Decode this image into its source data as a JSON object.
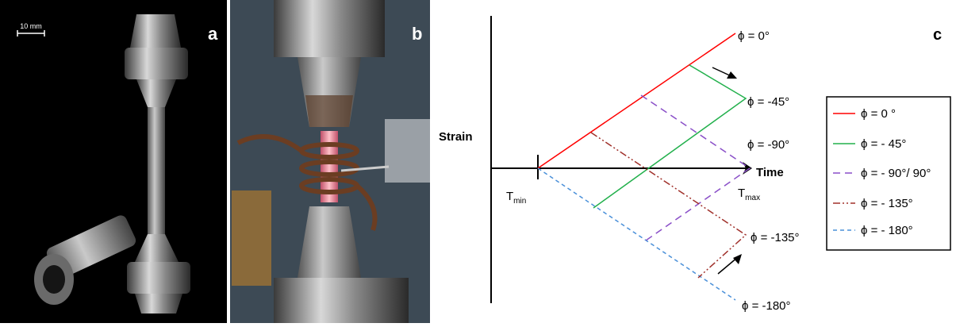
{
  "panels": {
    "a": {
      "label": "a",
      "scale_bar": "10 mm"
    },
    "b": {
      "label": "b"
    },
    "c": {
      "label": "c"
    }
  },
  "diagram": {
    "y_axis_label": "Strain",
    "x_axis_label": "Time",
    "t_min": {
      "main": "T",
      "sub": "min"
    },
    "t_max": {
      "main": "T",
      "sub": "max"
    },
    "phase_labels": [
      "ϕ = 0°",
      "ϕ = -45°",
      "ϕ = -90°",
      "ϕ = -135°",
      "ϕ = -180°"
    ]
  },
  "legend": [
    "ϕ = 0 °",
    "ϕ = - 45°",
    "ϕ = - 90°/ 90°",
    "ϕ = - 135°",
    "ϕ = - 180°"
  ]
}
